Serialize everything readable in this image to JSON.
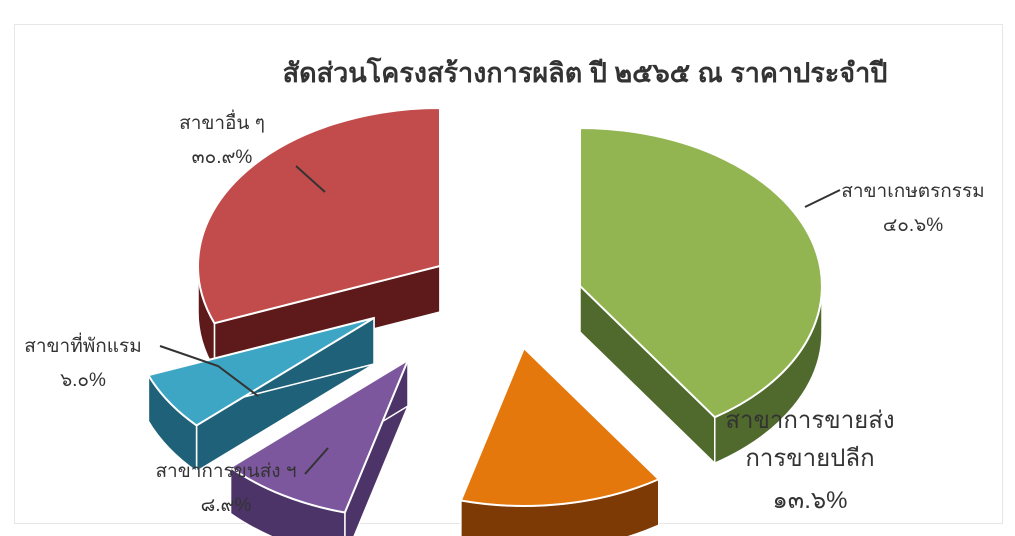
{
  "chart_data": {
    "type": "pie",
    "style": "3d-exploded",
    "title": "สัดส่วนโครงสร้างการผลิต ปี ๒๕๖๕ ณ ราคาประจำปี",
    "slices": [
      {
        "name_lines": [
          "สาขาเกษตรกรรม"
        ],
        "label": "๔๐.๖%",
        "value": 40.6,
        "color": "#92b552",
        "side_color": "#4f6a2c"
      },
      {
        "name_lines": [
          "สาขาการขายส่ง",
          "การขายปลีก"
        ],
        "label": "๑๓.๖%",
        "value": 13.6,
        "color": "#e4780c",
        "side_color": "#7e3a04"
      },
      {
        "name_lines": [
          "สาขาการขนส่ง ฯ"
        ],
        "label": "๘.๙%",
        "value": 8.9,
        "color": "#7c579d",
        "side_color": "#4d3468"
      },
      {
        "name_lines": [
          "สาขาที่พักแรม"
        ],
        "label": "๖.๐%",
        "value": 6.0,
        "color": "#3ea6c5",
        "side_color": "#1f6178"
      },
      {
        "name_lines": [
          "สาขาอื่น ๆ"
        ],
        "label": "๓๐.๙%",
        "value": 30.9,
        "color": "#c24b4b",
        "side_color": "#5e1a1a"
      }
    ]
  }
}
